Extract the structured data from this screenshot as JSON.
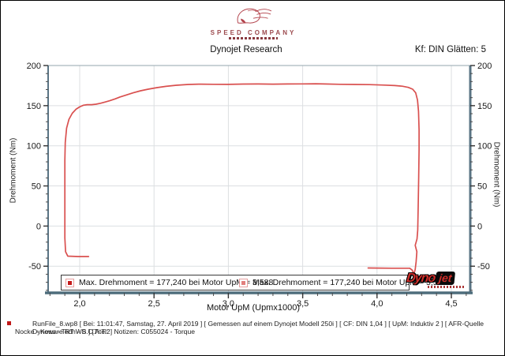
{
  "logo": {
    "company": "SPEED COMPANY"
  },
  "header": {
    "title": "Dynojet Research",
    "right_info": "Kf: DIN Glätten: 5"
  },
  "chart_data": {
    "type": "line",
    "xlabel": "Motor UpM (Upmx1000)",
    "ylabel_left": "Drehmoment (Nm)",
    "ylabel_right": "Drehmoment (Nm)",
    "xlim": [
      1.7877,
      4.6273
    ],
    "ylim": [
      -83.2,
      200
    ],
    "grid": true,
    "x_major_ticks": [
      2.0,
      2.5,
      3.0,
      3.5,
      4.0,
      4.5
    ],
    "x_tick_labels": [
      "2,0",
      "2,5",
      "3,0",
      "3,5",
      "4,0",
      "4,5"
    ],
    "x_minor_step": 0.1,
    "y_major_ticks": [
      -50,
      0,
      50,
      100,
      150,
      200
    ],
    "y_tick_labels": [
      "-50",
      "0",
      "50",
      "100",
      "150",
      "200"
    ],
    "y_minor_step": 10,
    "max_point": {
      "max_drehmoment_nm": "177,240",
      "bei_motor_upm": "3,588"
    },
    "series": [
      {
        "name": "Drehmoment",
        "color": "#d9504f",
        "points": [
          [
            2.06,
            -38
          ],
          [
            1.99,
            -38
          ],
          [
            1.92,
            -37.5
          ],
          [
            1.905,
            -32
          ],
          [
            1.9,
            -15
          ],
          [
            1.9,
            15
          ],
          [
            1.9,
            50
          ],
          [
            1.9,
            82
          ],
          [
            1.903,
            104
          ],
          [
            1.912,
            122
          ],
          [
            1.928,
            133
          ],
          [
            1.95,
            140.5
          ],
          [
            1.975,
            145.5
          ],
          [
            2.0,
            148.5
          ],
          [
            2.025,
            150.5
          ],
          [
            2.05,
            151.2
          ],
          [
            2.08,
            151.2
          ],
          [
            2.11,
            151.8
          ],
          [
            2.14,
            153
          ],
          [
            2.17,
            154.5
          ],
          [
            2.2,
            156
          ],
          [
            2.24,
            158.5
          ],
          [
            2.27,
            160.8
          ],
          [
            2.31,
            163
          ],
          [
            2.36,
            166
          ],
          [
            2.41,
            168.5
          ],
          [
            2.46,
            170.5
          ],
          [
            2.52,
            172.5
          ],
          [
            2.58,
            174
          ],
          [
            2.65,
            175.4
          ],
          [
            2.73,
            176.4
          ],
          [
            2.8,
            176.8
          ],
          [
            2.9,
            176.6
          ],
          [
            3.0,
            176.5
          ],
          [
            3.1,
            176.9
          ],
          [
            3.2,
            177.0
          ],
          [
            3.3,
            176.8
          ],
          [
            3.4,
            177.0
          ],
          [
            3.5,
            177.1
          ],
          [
            3.588,
            177.24
          ],
          [
            3.65,
            177.0
          ],
          [
            3.75,
            176.6
          ],
          [
            3.85,
            176.4
          ],
          [
            3.95,
            176.2
          ],
          [
            4.05,
            175.6
          ],
          [
            4.12,
            175.0
          ],
          [
            4.17,
            174.2
          ],
          [
            4.21,
            172.8
          ],
          [
            4.24,
            170.5
          ],
          [
            4.26,
            166
          ],
          [
            4.272,
            157
          ],
          [
            4.279,
            143
          ],
          [
            4.283,
            120
          ],
          [
            4.283,
            95
          ],
          [
            4.28,
            60
          ],
          [
            4.277,
            25
          ],
          [
            4.274,
            -5
          ],
          [
            4.269,
            -16
          ],
          [
            4.257,
            -24
          ],
          [
            4.268,
            -32
          ],
          [
            4.263,
            -44
          ],
          [
            4.257,
            -54
          ],
          [
            4.248,
            -60
          ],
          [
            4.237,
            -55
          ],
          [
            4.22,
            -52.5
          ],
          [
            4.1,
            -52.5
          ],
          [
            4.0,
            -52.3
          ],
          [
            3.94,
            -52.2
          ]
        ]
      }
    ],
    "legend": {
      "position": "bottom-inside",
      "entries": [
        {
          "marker_color": "#c41a1a",
          "label": "Max. Drehmoment = 177,240 bei Motor UpM = 3,588"
        },
        {
          "marker_color": "#e2807e",
          "label": "Max. Drehmoment = 177,240 bei Motor UpM = 3,588"
        }
      ]
    }
  },
  "watermark": {
    "brand_dyno": "Dyno",
    "brand_jet": "jet"
  },
  "footer": {
    "line1": "RunFile_8.wp8 [ Bei: 11:01:47, Samstag, 27. April 2019 ] [ Gemessen auf einem Dynojet Modell 250i ] [ CF: DIN 1,04 ] [ UpM: Induktiv 2 ] [ AFR-Quelle  Dynoware RT WB ] [Titel: ]  Notizen: C055024 - Torque",
    "line2": "Nocke - Kess - Tech - S.C.A.T.2"
  }
}
